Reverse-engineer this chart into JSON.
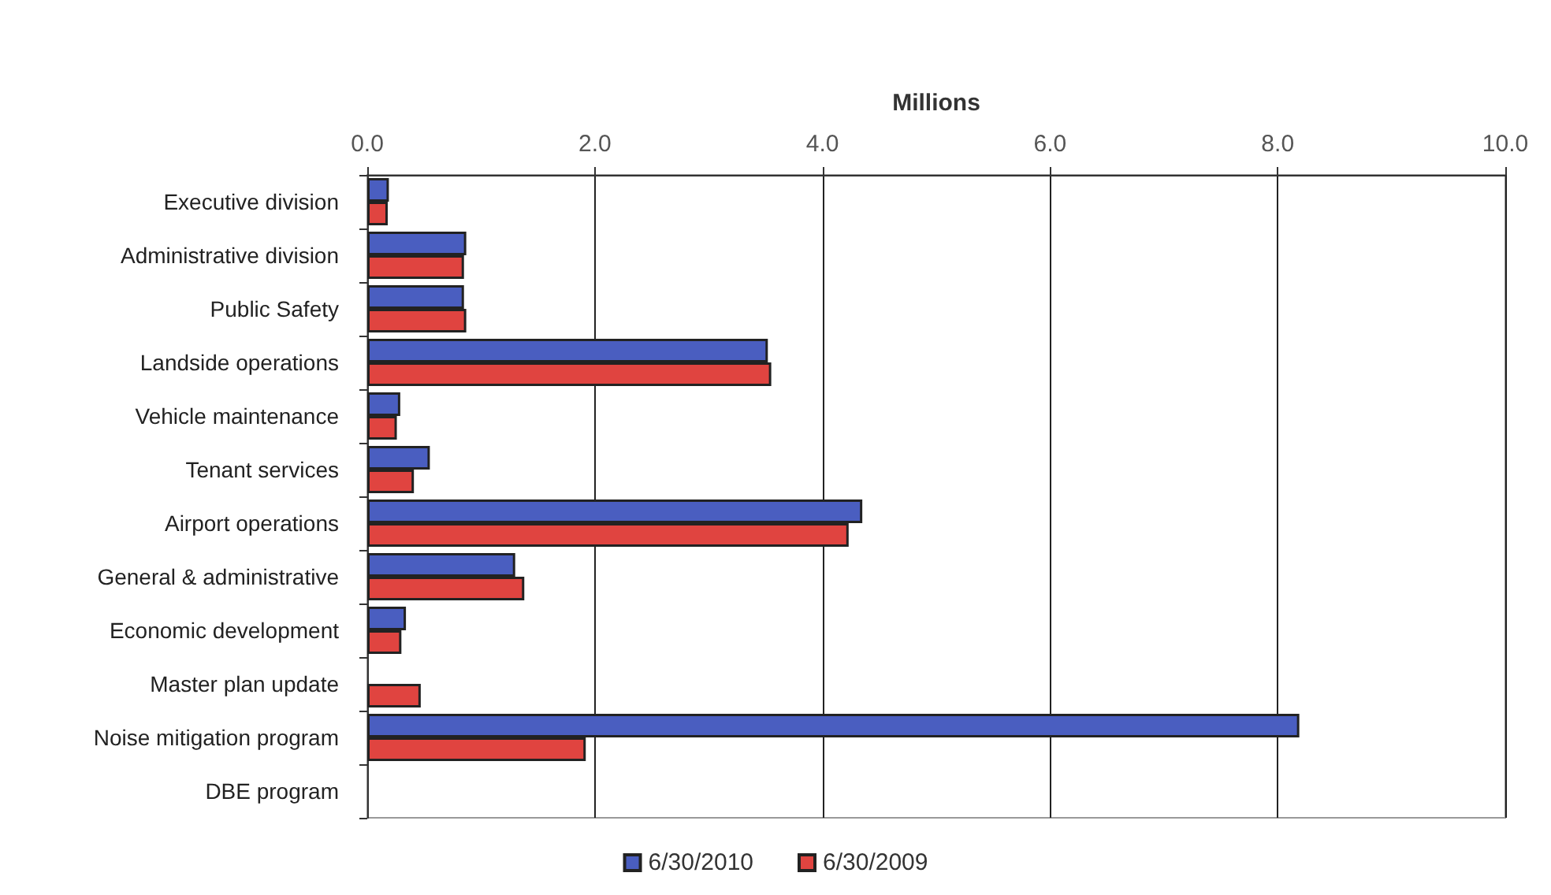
{
  "chart_data": {
    "type": "bar",
    "orientation": "horizontal",
    "xlabel": "Millions",
    "categories": [
      "Executive division",
      "Administrative division",
      "Public Safety",
      "Landside operations",
      "Vehicle maintenance",
      "Tenant services",
      "Airport operations",
      "General & administrative",
      "Economic development",
      "Master plan update",
      "Noise mitigation program",
      "DBE program"
    ],
    "series": [
      {
        "name": "6/30/2010",
        "color": "#4a5ec0",
        "values": [
          0.19,
          0.87,
          0.85,
          3.52,
          0.29,
          0.55,
          4.35,
          1.3,
          0.34,
          0,
          8.19,
          0
        ]
      },
      {
        "name": "6/30/2009",
        "color": "#e04440",
        "values": [
          0.18,
          0.85,
          0.87,
          3.55,
          0.26,
          0.41,
          4.23,
          1.38,
          0.3,
          0.47,
          1.92,
          0
        ]
      }
    ],
    "xlim": [
      0,
      10
    ],
    "xticks": [
      {
        "value": 0,
        "label": "0.0"
      },
      {
        "value": 2,
        "label": "2.0"
      },
      {
        "value": 4,
        "label": "4.0"
      },
      {
        "value": 6,
        "label": "6.0"
      },
      {
        "value": 8,
        "label": "8.0"
      },
      {
        "value": 10,
        "label": "10.0"
      }
    ],
    "grid": "x",
    "legend": "bottom"
  }
}
